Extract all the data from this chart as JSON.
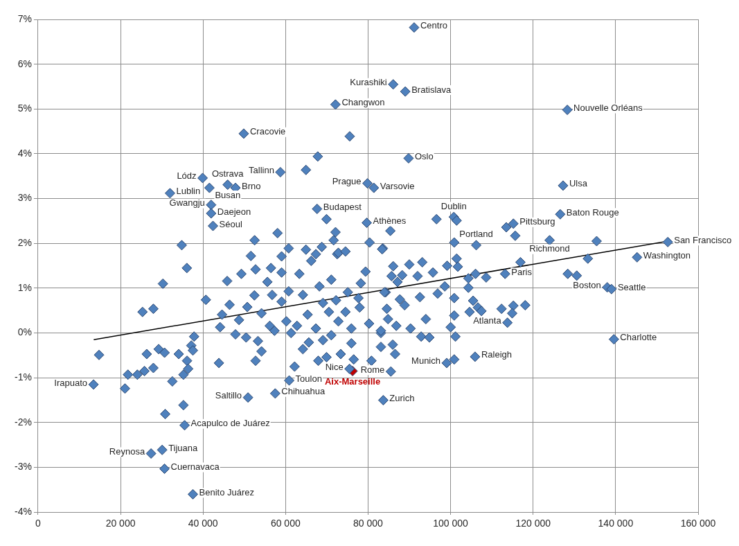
{
  "chart_data": {
    "type": "scatter",
    "marker": "diamond",
    "grid": true,
    "legend": false,
    "xlim": [
      0,
      160000
    ],
    "ylim": [
      -4,
      7
    ],
    "xticks": [
      0,
      {
        "value": 20000,
        "label": "20 000"
      },
      {
        "value": 40000,
        "label": "40 000"
      },
      {
        "value": 60000,
        "label": "60 000"
      },
      {
        "value": 80000,
        "label": "80 000"
      },
      {
        "value": 100000,
        "label": "100 000"
      },
      {
        "value": 120000,
        "label": "120 000"
      },
      {
        "value": 140000,
        "label": "140 000"
      },
      {
        "value": 160000,
        "label": "160 000"
      }
    ],
    "yticks": [
      {
        "value": -4,
        "label": "-4%"
      },
      {
        "value": -3,
        "label": "-3%"
      },
      {
        "value": -2,
        "label": "-2%"
      },
      {
        "value": -1,
        "label": "-1%"
      },
      {
        "value": 0,
        "label": "0%"
      },
      {
        "value": 1,
        "label": "1%"
      },
      {
        "value": 2,
        "label": "2%"
      },
      {
        "value": 3,
        "label": "3%"
      },
      {
        "value": 4,
        "label": "4%"
      },
      {
        "value": 5,
        "label": "5%"
      },
      {
        "value": 6,
        "label": "6%"
      },
      {
        "value": 7,
        "label": "7%"
      }
    ],
    "series": [
      {
        "color": "#4f81bd",
        "x": [
          91160,
          86090,
          89020,
          72100,
          128290,
          49870,
          89820,
          58750,
          39900,
          79850,
          45970,
          127260,
          81400,
          47860,
          31990,
          41550,
          41960,
          67640,
          41960,
          126570,
          100780,
          79680,
          115220,
          42410,
          124000,
          152650,
          106210,
          145200,
          113210,
          137970,
          139000,
          113780,
          139580,
          13460,
          105930,
          99060,
          75500,
          85520,
          60880,
          57490,
          50900,
          83680,
          35530,
          30090,
          27400,
          30660,
          37540,
          75550,
          64940,
          67810,
          58060,
          52500,
          69930,
          72110,
          71650,
          80360,
          34840,
          96580,
          101470,
          113500,
          115670,
          135400,
          133270,
          100880,
          85400,
          83580,
          128400,
          130580,
          116930,
          112350,
          115220,
          118080,
          114930,
          100880,
          14790,
          36080,
          30270,
          25330,
          27960,
          40690,
          45850,
          49290,
          51590,
          52730,
          56460,
          59040,
          63340,
          66210,
          72510,
          79380,
          78240,
          46430,
          44600,
          50730,
          52450,
          55600,
          56750,
          59040,
          60760,
          64200,
          68210,
          71080,
          75090,
          77670,
          77950,
          80240,
          83110,
          84270,
          44130,
          47860,
          50440,
          48720,
          53310,
          54170,
          52730,
          43850,
          56170,
          57320,
          54170,
          60190,
          61330,
          62770,
          65350,
          67350,
          64200,
          65630,
          67930,
          69930,
          69070,
          71080,
          73370,
          72800,
          74520,
          70510,
          69070,
          72230,
          75950,
          75950,
          76520,
          80820,
          83110,
          62190,
          37830,
          37150,
          37540,
          34110,
          36120,
          36400,
          35250,
          32560,
          29240,
          30670,
          26350,
          27960,
          25800,
          24080,
          21790,
          21080,
          35250,
          30830,
          60760,
          64940,
          68790,
          67350,
          72800,
          74520,
          83410,
          59040,
          86090,
          89990,
          93140,
          85690,
          88270,
          92000,
          95720,
          99160,
          101470,
          101750,
          87130,
          106040,
          108620,
          104320,
          83970,
          87700,
          88850,
          92570,
          98590,
          96870,
          100880,
          104320,
          105460,
          106620,
          104600,
          107480,
          100880,
          100020,
          101170,
          84540,
          84830,
          94000,
          90290,
          86840,
          83110,
          92870,
          94860,
          85980,
          86550
        ],
        "values": [
          6.82,
          5.55,
          5.39,
          5.1,
          4.98,
          4.45,
          3.9,
          3.59,
          3.46,
          3.34,
          3.31,
          3.29,
          3.24,
          3.24,
          3.12,
          3.24,
          2.86,
          2.77,
          2.67,
          2.65,
          2.59,
          2.46,
          2.44,
          2.39,
          2.07,
          2.03,
          1.96,
          1.69,
          1.32,
          1.02,
          0.98,
          0.23,
          -0.14,
          -1.15,
          -0.53,
          -0.67,
          -0.8,
          -0.86,
          -1.06,
          -1.35,
          -1.44,
          -1.5,
          -2.06,
          -2.61,
          -2.69,
          -3.03,
          -3.6,
          4.39,
          3.64,
          3.94,
          2.23,
          2.07,
          2.54,
          2.25,
          2.07,
          2.02,
          1.96,
          2.54,
          2.51,
          2.36,
          2.17,
          2.05,
          1.66,
          2.02,
          2.28,
          1.89,
          1.32,
          1.28,
          1.58,
          0.54,
          0.61,
          0.62,
          0.44,
          -0.59,
          -0.49,
          1.45,
          1.1,
          0.47,
          0.54,
          0.74,
          1.16,
          1.32,
          1.72,
          1.42,
          1.45,
          1.35,
          1.32,
          1.61,
          1.76,
          1.37,
          1.11,
          0.63,
          0.41,
          0.58,
          0.84,
          1.14,
          0.85,
          0.7,
          0.93,
          0.85,
          1.04,
          1.19,
          0.91,
          0.78,
          0.57,
          0.21,
          0,
          0.91,
          0.13,
          -0.03,
          -0.1,
          0.29,
          -0.18,
          -0.41,
          -0.62,
          -0.67,
          0.16,
          0.05,
          0.44,
          0.26,
          0,
          0.16,
          0.41,
          0.1,
          -0.36,
          -0.21,
          -0.62,
          -0.54,
          -0.16,
          -0.05,
          -0.47,
          0.26,
          0.47,
          0.47,
          0.67,
          0.73,
          0.1,
          -0.23,
          -0.59,
          -0.62,
          -0.31,
          -0.75,
          -0.08,
          -0.28,
          -0.39,
          -0.47,
          -0.62,
          -0.8,
          -0.93,
          -1.08,
          -0.36,
          -0.44,
          -0.47,
          -0.78,
          -0.85,
          -0.93,
          -0.93,
          -1.24,
          -1.61,
          -1.81,
          1.89,
          1.86,
          1.92,
          1.76,
          1.79,
          1.82,
          1.87,
          1.71,
          1.49,
          1.53,
          1.58,
          1.27,
          1.29,
          1.27,
          1.35,
          1.5,
          1.66,
          1.48,
          1.14,
          1.32,
          1.24,
          1.22,
          0.91,
          0.75,
          0.62,
          0.8,
          1.04,
          0.88,
          0.78,
          1.01,
          0.72,
          0.57,
          0.47,
          0.49,
          0.39,
          0.13,
          -0.08,
          0.54,
          0.31,
          0.31,
          0.1,
          0.16,
          0.05,
          -0.08,
          -0.1,
          -0.26,
          -0.47
        ]
      },
      {
        "name": "Aix-Marseille",
        "color": "#c00000",
        "x": [
          76240
        ],
        "values": [
          -0.85
        ]
      },
      {
        "type": "line",
        "marker": "none",
        "color": "#000000",
        "x": [
          13500,
          152000
        ],
        "values": [
          -0.15,
          2.04
        ]
      }
    ],
    "annotations": [
      {
        "text": "Centro",
        "x": 91160,
        "y": 6.82
      },
      {
        "text": "Kurashiki",
        "x": 86090,
        "y": 5.55
      },
      {
        "text": "Bratislava",
        "x": 89020,
        "y": 5.39
      },
      {
        "text": "Changwon",
        "x": 72100,
        "y": 5.1
      },
      {
        "text": "Nouvelle Orléans",
        "x": 128290,
        "y": 4.98
      },
      {
        "text": "Cracovie",
        "x": 49870,
        "y": 4.45
      },
      {
        "text": "Oslo",
        "x": 89820,
        "y": 3.9
      },
      {
        "text": "Tallinn",
        "x": 58750,
        "y": 3.59
      },
      {
        "text": "Lódz",
        "x": 39900,
        "y": 3.46
      },
      {
        "text": "Prague",
        "x": 79850,
        "y": 3.34
      },
      {
        "text": "Ostrava",
        "x": 45970,
        "y": 3.31
      },
      {
        "text": "Ulsa",
        "x": 127260,
        "y": 3.29
      },
      {
        "text": "Varsovie",
        "x": 81400,
        "y": 3.24
      },
      {
        "text": "Brno",
        "x": 47860,
        "y": 3.24
      },
      {
        "text": "Lublin",
        "x": 31990,
        "y": 3.12
      },
      {
        "text": "Busan",
        "x": 41550,
        "y": 3.24
      },
      {
        "text": "Gwangju",
        "x": 41960,
        "y": 2.86
      },
      {
        "text": "Budapest",
        "x": 67640,
        "y": 2.77
      },
      {
        "text": "Daejeon",
        "x": 41960,
        "y": 2.67
      },
      {
        "text": "Baton Rouge",
        "x": 126570,
        "y": 2.65
      },
      {
        "text": "Dublin",
        "x": 100780,
        "y": 2.59
      },
      {
        "text": "Athènes",
        "x": 79680,
        "y": 2.46
      },
      {
        "text": "Pittsburg",
        "x": 115220,
        "y": 2.44
      },
      {
        "text": "Séoul",
        "x": 42410,
        "y": 2.39
      },
      {
        "text": "Richmond",
        "x": 124000,
        "y": 2.07
      },
      {
        "text": "San Francisco",
        "x": 152650,
        "y": 2.03
      },
      {
        "text": "Portland",
        "x": 106210,
        "y": 1.96
      },
      {
        "text": "Washington",
        "x": 145200,
        "y": 1.69
      },
      {
        "text": "Paris",
        "x": 113210,
        "y": 1.32
      },
      {
        "text": "Boston",
        "x": 137970,
        "y": 1.02
      },
      {
        "text": "Seattle",
        "x": 139000,
        "y": 0.98
      },
      {
        "text": "Atlanta",
        "x": 113780,
        "y": 0.23
      },
      {
        "text": "Charlotte",
        "x": 139580,
        "y": -0.14
      },
      {
        "text": "Irapuato",
        "x": 13460,
        "y": -1.15
      },
      {
        "text": "Raleigh",
        "x": 105930,
        "y": -0.53
      },
      {
        "text": "Munich",
        "x": 99060,
        "y": -0.67
      },
      {
        "text": "Nice",
        "x": 75500,
        "y": -0.8
      },
      {
        "text": "Rome",
        "x": 85520,
        "y": -0.86
      },
      {
        "text": "Toulon",
        "x": 60880,
        "y": -1.06
      },
      {
        "text": "Chihuahua",
        "x": 57490,
        "y": -1.35
      },
      {
        "text": "Saltillo",
        "x": 50900,
        "y": -1.44
      },
      {
        "text": "Zurich",
        "x": 83680,
        "y": -1.5
      },
      {
        "text": "Acapulco de Juárez",
        "x": 35530,
        "y": -2.06
      },
      {
        "text": "Tijuana",
        "x": 30090,
        "y": -2.61
      },
      {
        "text": "Reynosa",
        "x": 27400,
        "y": -2.69
      },
      {
        "text": "Cuernavaca",
        "x": 30660,
        "y": -3.03
      },
      {
        "text": "Benito Juárez",
        "x": 37540,
        "y": -3.6
      }
    ]
  }
}
